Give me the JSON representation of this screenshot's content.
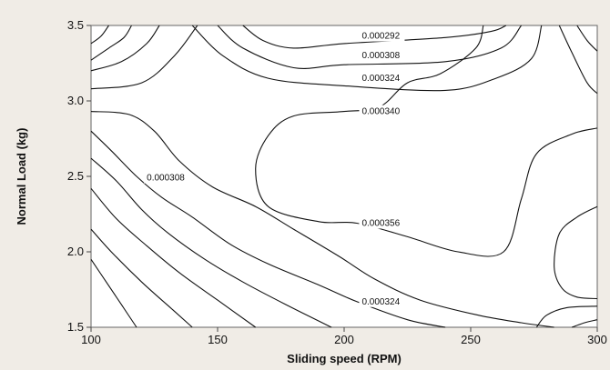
{
  "chart_data": {
    "type": "contour",
    "title": "",
    "xlabel": "Sliding speed (RPM)",
    "ylabel": "Normal Load (kg)",
    "xlim": [
      100,
      300
    ],
    "ylim": [
      1.5,
      3.5
    ],
    "x_ticks": [
      100,
      150,
      200,
      250,
      300
    ],
    "x_tick_labels": [
      "100",
      "150",
      "200",
      "250",
      "300"
    ],
    "y_ticks": [
      1.5,
      2.0,
      2.5,
      3.0,
      3.5
    ],
    "y_tick_labels": [
      "1.5",
      "2.0",
      "2.5",
      "3.0",
      "3.5"
    ],
    "grid": false,
    "contour_labels": [
      {
        "text": "0.000292",
        "x": 207,
        "y": 3.43
      },
      {
        "text": "0.000308",
        "x": 207,
        "y": 3.3
      },
      {
        "text": "0.000324",
        "x": 207,
        "y": 3.15
      },
      {
        "text": "0.000340",
        "x": 207,
        "y": 2.93
      },
      {
        "text": "0.000308",
        "x": 122,
        "y": 2.49
      },
      {
        "text": "0.000356",
        "x": 207,
        "y": 2.19
      },
      {
        "text": "0.000324",
        "x": 207,
        "y": 1.67
      }
    ],
    "contour_lines": [
      [
        [
          100,
          3.38
        ],
        [
          104,
          3.43
        ],
        [
          107,
          3.5
        ]
      ],
      [
        [
          100,
          3.27
        ],
        [
          107,
          3.35
        ],
        [
          113,
          3.42
        ],
        [
          116,
          3.5
        ]
      ],
      [
        [
          100,
          3.2
        ],
        [
          112,
          3.26
        ],
        [
          122,
          3.38
        ],
        [
          127,
          3.5
        ]
      ],
      [
        [
          100,
          3.08
        ],
        [
          120,
          3.12
        ],
        [
          133,
          3.3
        ],
        [
          142,
          3.5
        ]
      ],
      [
        [
          160,
          3.5
        ],
        [
          168,
          3.4
        ],
        [
          180,
          3.35
        ],
        [
          200,
          3.38
        ],
        [
          240,
          3.42
        ],
        [
          258,
          3.46
        ],
        [
          264,
          3.5
        ]
      ],
      [
        [
          150,
          3.5
        ],
        [
          160,
          3.35
        ],
        [
          180,
          3.22
        ],
        [
          200,
          3.24
        ],
        [
          240,
          3.26
        ],
        [
          262,
          3.35
        ],
        [
          270,
          3.5
        ]
      ],
      [
        [
          140,
          3.5
        ],
        [
          152,
          3.3
        ],
        [
          170,
          3.15
        ],
        [
          200,
          3.1
        ],
        [
          240,
          3.07
        ],
        [
          260,
          3.15
        ],
        [
          274,
          3.28
        ],
        [
          278,
          3.5
        ]
      ],
      [
        [
          100,
          2.93
        ],
        [
          115,
          2.91
        ],
        [
          125,
          2.8
        ],
        [
          135,
          2.6
        ],
        [
          148,
          2.43
        ],
        [
          165,
          2.3
        ],
        [
          180,
          2.15
        ],
        [
          198,
          1.97
        ],
        [
          212,
          1.82
        ],
        [
          230,
          1.68
        ],
        [
          253,
          1.58
        ],
        [
          270,
          1.53
        ],
        [
          283,
          1.5
        ]
      ],
      [
        [
          255,
          3.5
        ],
        [
          252,
          3.35
        ],
        [
          238,
          3.18
        ],
        [
          225,
          3.12
        ],
        [
          214,
          2.96
        ],
        [
          200,
          2.93
        ],
        [
          180,
          2.9
        ],
        [
          170,
          2.77
        ],
        [
          165,
          2.55
        ],
        [
          170,
          2.3
        ],
        [
          190,
          2.2
        ],
        [
          205,
          2.19
        ],
        [
          225,
          2.1
        ],
        [
          245,
          2.0
        ],
        [
          263,
          2.0
        ],
        [
          270,
          2.35
        ],
        [
          276,
          2.65
        ],
        [
          290,
          2.78
        ],
        [
          300,
          2.82
        ]
      ],
      [
        [
          300,
          2.3
        ],
        [
          292,
          2.23
        ],
        [
          285,
          2.12
        ],
        [
          283,
          1.9
        ],
        [
          286,
          1.76
        ],
        [
          292,
          1.7
        ],
        [
          300,
          1.69
        ]
      ],
      [
        [
          100,
          2.8
        ],
        [
          108,
          2.67
        ],
        [
          118,
          2.5
        ],
        [
          128,
          2.36
        ],
        [
          140,
          2.23
        ],
        [
          155,
          2.05
        ],
        [
          170,
          1.92
        ],
        [
          190,
          1.78
        ],
        [
          205,
          1.67
        ],
        [
          225,
          1.55
        ],
        [
          240,
          1.5
        ]
      ],
      [
        [
          100,
          2.62
        ],
        [
          110,
          2.47
        ],
        [
          120,
          2.28
        ],
        [
          130,
          2.13
        ],
        [
          145,
          1.95
        ],
        [
          160,
          1.8
        ],
        [
          177,
          1.65
        ],
        [
          195,
          1.5
        ]
      ],
      [
        [
          100,
          2.42
        ],
        [
          110,
          2.22
        ],
        [
          122,
          2.04
        ],
        [
          135,
          1.86
        ],
        [
          150,
          1.68
        ],
        [
          165,
          1.5
        ]
      ],
      [
        [
          100,
          2.15
        ],
        [
          108,
          2.0
        ],
        [
          120,
          1.8
        ],
        [
          132,
          1.62
        ],
        [
          140,
          1.5
        ]
      ],
      [
        [
          100,
          1.95
        ],
        [
          106,
          1.8
        ],
        [
          112,
          1.65
        ],
        [
          118,
          1.5
        ]
      ],
      [
        [
          285,
          3.5
        ],
        [
          290,
          3.32
        ],
        [
          296,
          3.12
        ],
        [
          300,
          3.05
        ]
      ],
      [
        [
          292,
          3.5
        ],
        [
          296,
          3.4
        ],
        [
          300,
          3.33
        ]
      ],
      [
        [
          276,
          1.5
        ],
        [
          280,
          1.58
        ],
        [
          288,
          1.63
        ],
        [
          300,
          1.64
        ]
      ],
      [
        [
          290,
          1.5
        ],
        [
          295,
          1.53
        ],
        [
          300,
          1.55
        ]
      ]
    ]
  }
}
